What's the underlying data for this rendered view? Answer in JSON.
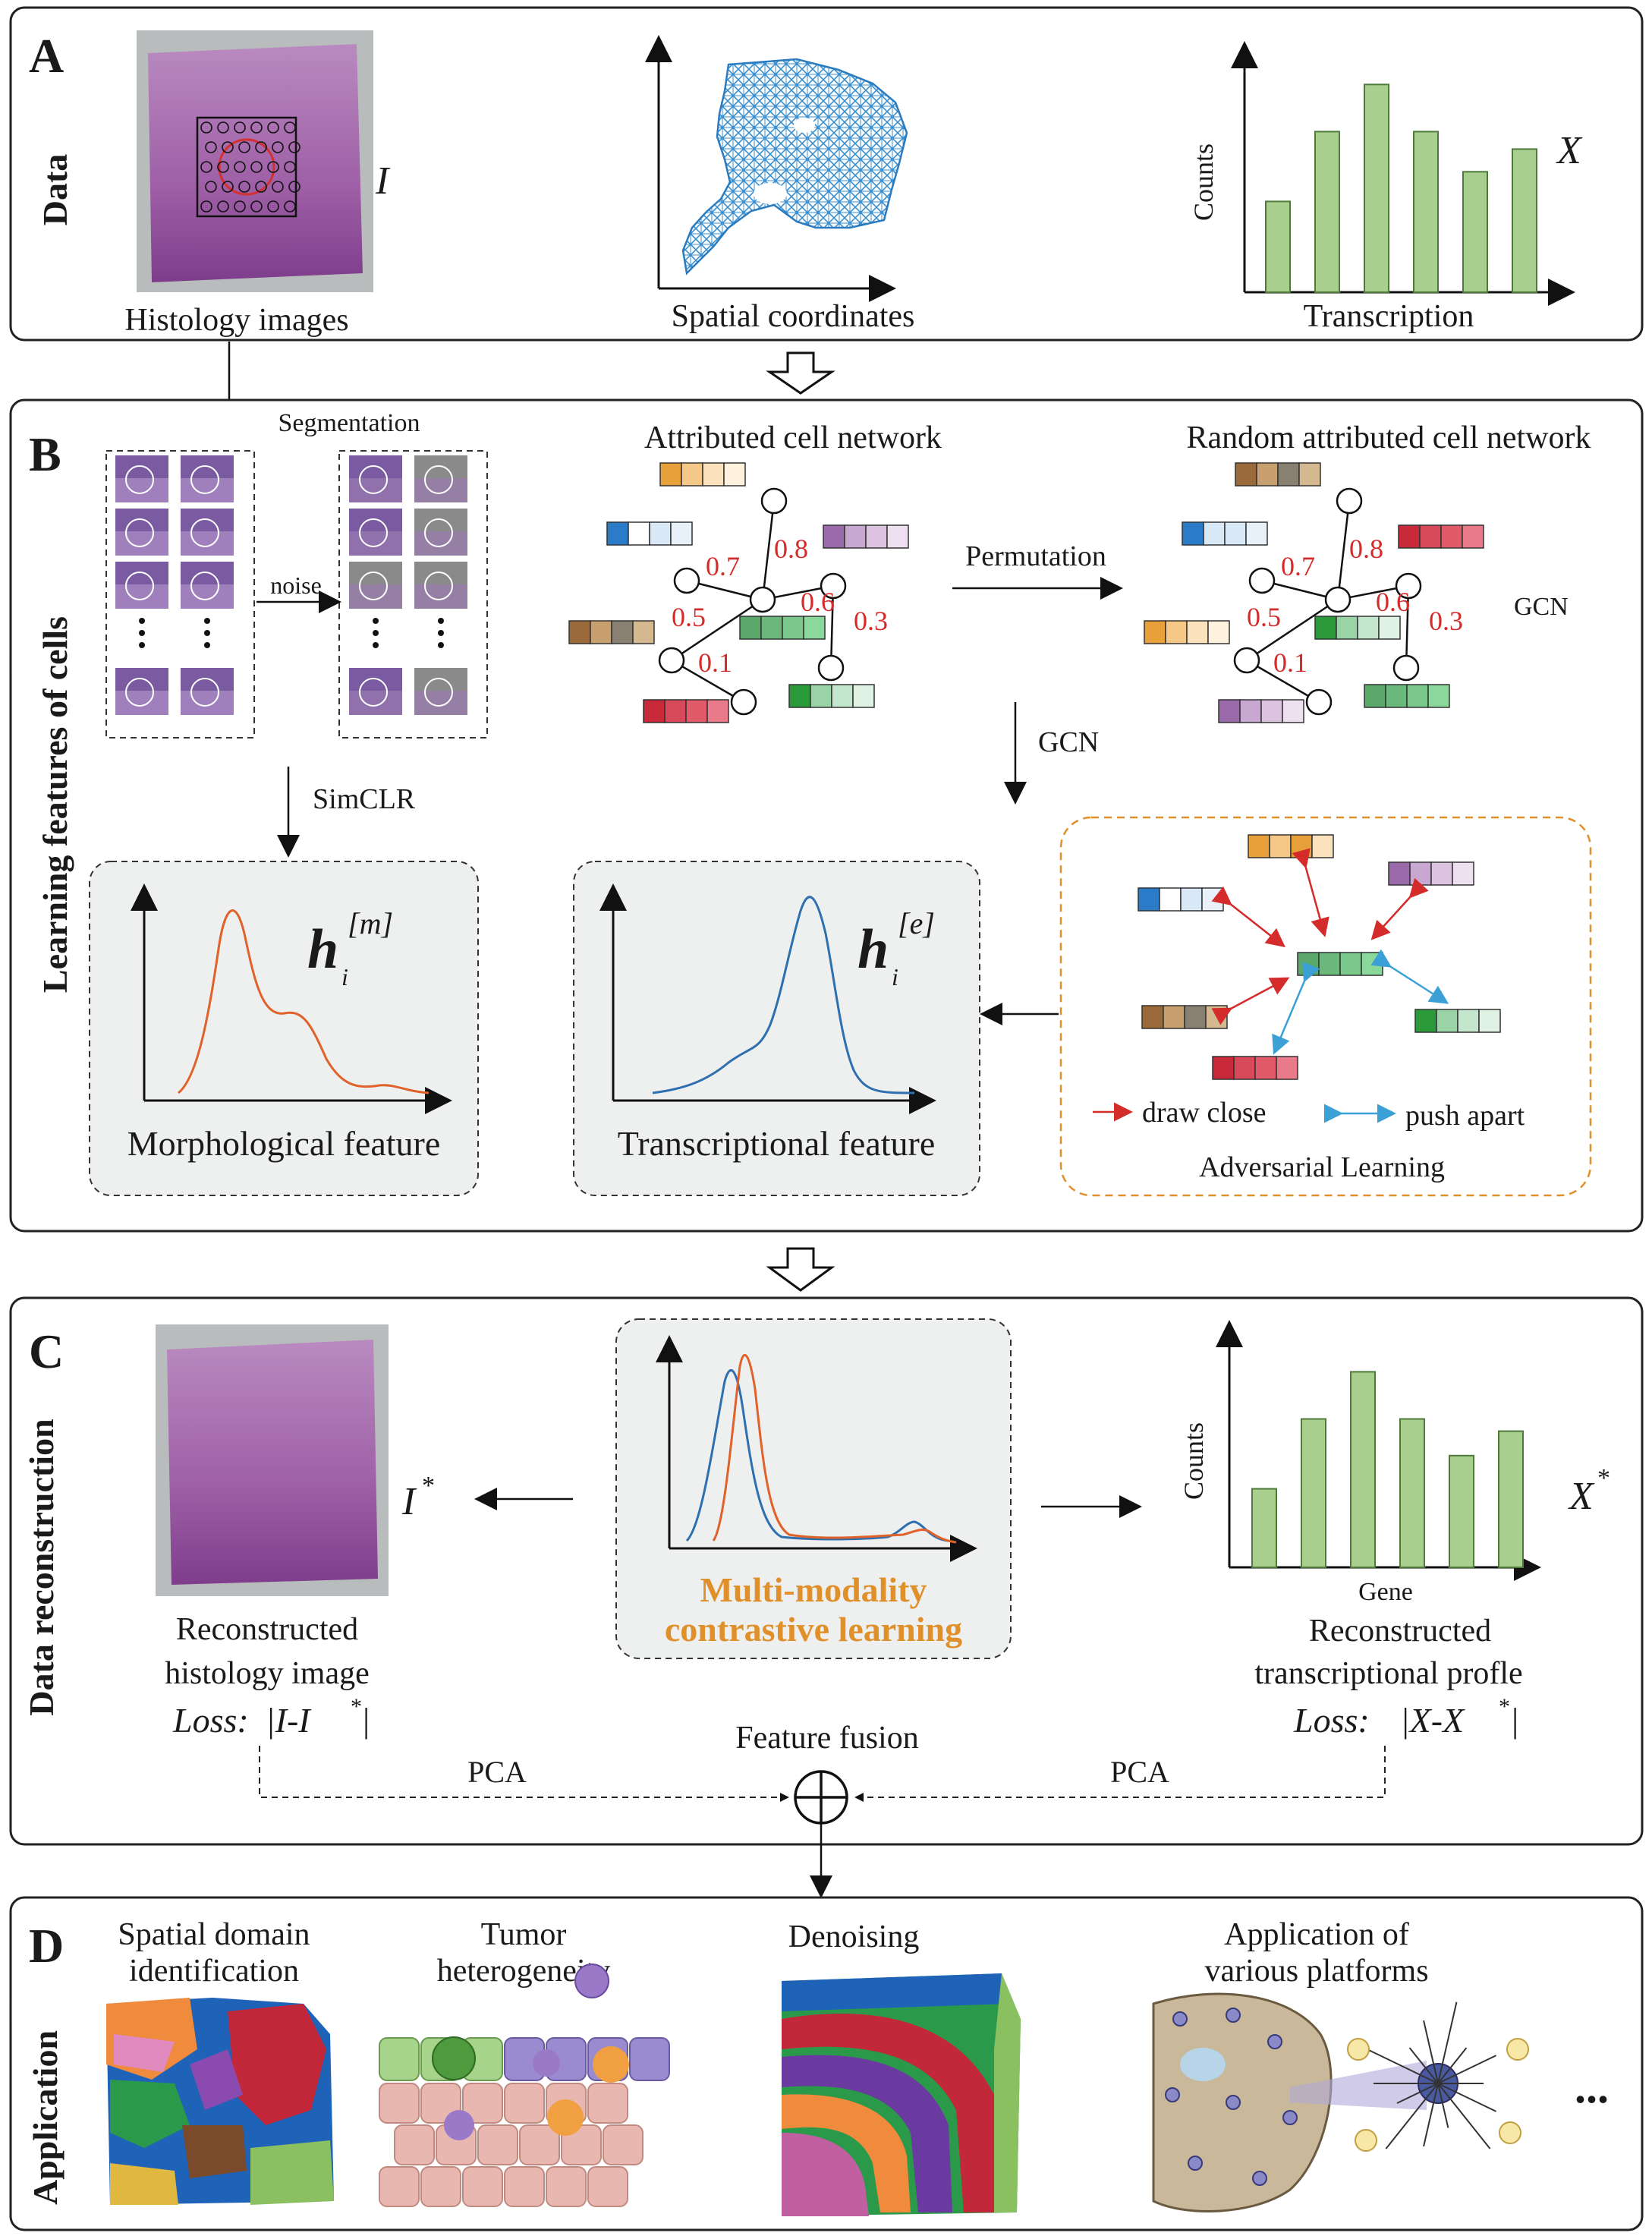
{
  "panels": {
    "A": {
      "letter": "A",
      "side_label": "Data",
      "histology_caption": "Histology images",
      "image_symbol": "I",
      "spatial_caption": "Spatial coordinates",
      "bar_ylabel": "Counts",
      "bar_xlabel": "Transcription",
      "matrix_symbol": "X"
    },
    "B": {
      "letter": "B",
      "side_label": "Learning features of cells",
      "segmentation_label": "Segmentation",
      "noise_label": "noise",
      "simclr_label": "SimCLR",
      "network_title": "Attributed cell network",
      "random_network_title": "Random attributed cell network",
      "permutation_label": "Permutation",
      "gcn_label_right": "GCN",
      "gcn_label_down": "GCN",
      "edge_weights": [
        "0.7",
        "0.8",
        "0.6",
        "0.5",
        "0.3",
        "0.1"
      ],
      "morph_feature_label": "Morphological feature",
      "morph_symbol": "h",
      "morph_sub": "i",
      "morph_sup": "[m]",
      "trans_feature_label": "Transcriptional feature",
      "trans_symbol": "h",
      "trans_sub": "i",
      "trans_sup": "[e]",
      "draw_close_label": "draw close",
      "push_apart_label": "push apart",
      "adversarial_label": "Adversarial Learning"
    },
    "C": {
      "letter": "C",
      "side_label": "Data reconstruction",
      "image_star": "I",
      "recon_image_caption_1": "Reconstructed",
      "recon_image_caption_2": "histology image",
      "loss_image": "|I-I",
      "loss_word": "Loss:",
      "contrastive_1": "Multi-modality",
      "contrastive_2": "contrastive learning",
      "bar_ylabel": "Counts",
      "bar_xlabel": "Gene",
      "matrix_star": "X",
      "recon_profile_caption_1": "Reconstructed",
      "recon_profile_caption_2": "transcriptional profle",
      "loss_profile": "|X-X",
      "fusion_label": "Feature fusion",
      "pca_left": "PCA",
      "pca_right": "PCA"
    },
    "D": {
      "letter": "D",
      "side_label": "Application",
      "app1_line1": "Spatial domain",
      "app1_line2": "identification",
      "app2_line1": "Tumor",
      "app2_line2": "heterogeneity",
      "app3": "Denoising",
      "app4_line1": "Application of",
      "app4_line2": "various platforms",
      "ellipsis": "..."
    }
  },
  "colors": {
    "histology": "#9a5aa0",
    "bar_fill": "#a9cf8e",
    "morph_curve": "#e0622a",
    "trans_curve": "#2e6fb0",
    "edge_weight_text": "#d42b2b",
    "contrastive_text": "#e0902a",
    "draw_close_arrow": "#d42b2b",
    "push_apart_arrow": "#3aa0d6"
  },
  "bar_charts": {
    "A_transcription": {
      "values": [
        0.52,
        0.92,
        1.19,
        0.92,
        0.69,
        0.82
      ]
    },
    "C_gene": {
      "values": [
        0.45,
        0.85,
        1.12,
        0.85,
        0.64,
        0.78
      ]
    }
  }
}
